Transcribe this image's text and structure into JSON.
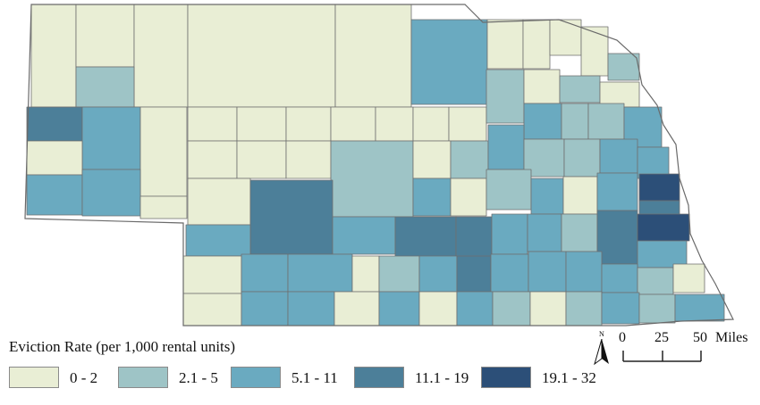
{
  "legend": {
    "title": "Eviction Rate (per 1,000 rental units)",
    "classes": [
      {
        "label": "0 - 2",
        "color": "#e9eed5"
      },
      {
        "label": "2.1 - 5",
        "color": "#9ec4c6"
      },
      {
        "label": "5.1 - 11",
        "color": "#6aaac0"
      },
      {
        "label": "11.1 - 19",
        "color": "#4c7f99"
      },
      {
        "label": "19.1 - 32",
        "color": "#2c4f78"
      }
    ]
  },
  "north_arrow": {
    "label": "N"
  },
  "scale_bar": {
    "ticks": [
      "0",
      "25",
      "50"
    ],
    "unit": "Miles"
  }
}
